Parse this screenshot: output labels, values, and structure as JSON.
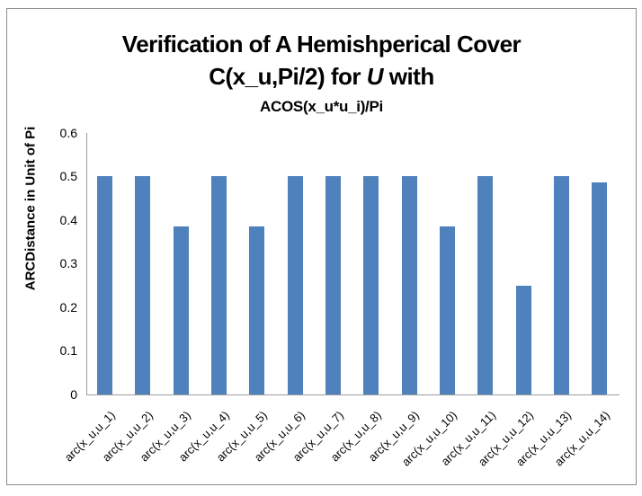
{
  "chart_data": {
    "type": "bar",
    "title_line1": "Verification of A Hemishperical Cover",
    "title_line2": {
      "pre": "C(x_u,Pi/2) for ",
      "italic": "U",
      "post": " with"
    },
    "title_line3": "ACOS(x_u*u_i)/Pi",
    "ylabel": "ARCDistance in Unit of Pi",
    "xlabel": "",
    "ylim": [
      0,
      0.6
    ],
    "ytick_labels": [
      "0",
      "0.1",
      "0.2",
      "0.3",
      "0.4",
      "0.5",
      "0.6"
    ],
    "categories": [
      "arc(x_u,u_1)",
      "arc(x_u,u_2)",
      "arc(x_u,u_3)",
      "arc(x_u,u_4)",
      "arc(x_u,u_5)",
      "arc(x_u,u_6)",
      "arc(x_u,u_7)",
      "arc(x_u,u_8)",
      "arc(x_u,u_9)",
      "arc(x_u,u_10)",
      "arc(x_u,u_11)",
      "arc(x_u,u_12)",
      "arc(x_u,u_13)",
      "arc(x_u,u_14)"
    ],
    "values": [
      0.5,
      0.5,
      0.385,
      0.5,
      0.385,
      0.5,
      0.5,
      0.5,
      0.5,
      0.385,
      0.5,
      0.25,
      0.5,
      0.485
    ],
    "grid": false,
    "legend": false,
    "bar_color": "#4F81BD",
    "axis_color": "#9C9C9C",
    "frame_border_color": "#8C8C8C"
  }
}
